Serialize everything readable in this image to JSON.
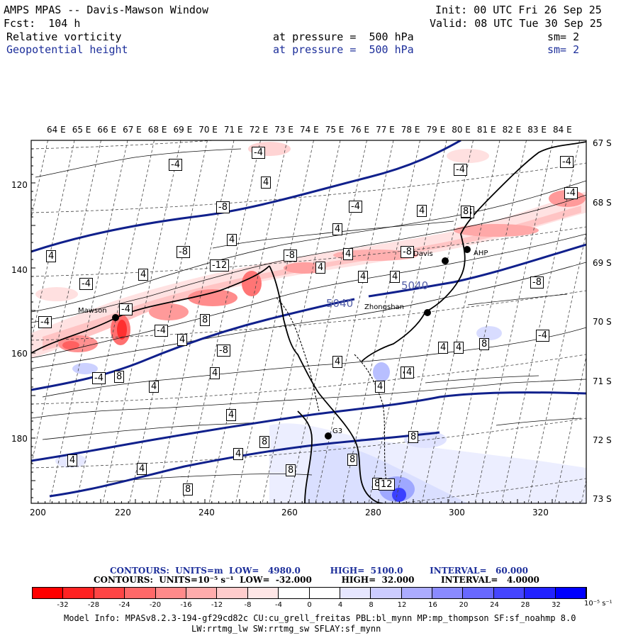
{
  "header": {
    "title": "AMPS MPAS -- Davis-Mawson Window",
    "init": "Init: 00 UTC Fri 26 Sep 25",
    "fcst": "Fcst:  104 h",
    "valid": "Valid: 08 UTC Tue 30 Sep 25",
    "field1_name": "Relative vorticity",
    "field1_level": "at pressure =  500 hPa",
    "field1_sm": "sm= 2",
    "field2_name": "Geopotential height",
    "field2_level": "at pressure =  500 hPa",
    "field2_sm": "sm= 2"
  },
  "map": {
    "top_lon_labels": [
      "64 E",
      "65 E",
      "66 E",
      "67 E",
      "68 E",
      "69 E",
      "70 E",
      "71 E",
      "72 E",
      "73 E",
      "74 E",
      "75 E",
      "76 E",
      "77 E",
      "78 E",
      "79 E",
      "80 E",
      "81 E",
      "82 E",
      "83 E",
      "84 E"
    ],
    "right_lat_labels": [
      "67 S",
      "68 S",
      "69 S",
      "70 S",
      "71 S",
      "72 S",
      "73 S"
    ],
    "left_axis_labels": [
      "120",
      "140",
      "160",
      "180"
    ],
    "bottom_axis_labels": [
      "200",
      "220",
      "240",
      "260",
      "280",
      "300",
      "320"
    ],
    "stations": [
      {
        "name": "Mawson"
      },
      {
        "name": "Davis"
      },
      {
        "name": "AHP"
      },
      {
        "name": "Zhongshan"
      },
      {
        "name": "G3"
      }
    ],
    "height_labels": [
      "5040",
      "5040"
    ],
    "contour_labels": [
      "-4",
      "-4",
      "4",
      "-4",
      "4",
      "-8",
      "-4",
      "4",
      "-4",
      "4",
      "4",
      "-4",
      "4",
      "-12",
      "-8",
      "-8",
      "4",
      "4",
      "-8",
      "4",
      "4",
      "-4",
      "-4",
      "-8",
      "-4",
      "8",
      "-4",
      "4",
      "-8",
      "-4",
      "4",
      "8",
      "4",
      "4",
      "4",
      "8",
      "4",
      "4",
      "-4",
      "4",
      "4",
      "4",
      "4",
      "8",
      "8",
      "8",
      "8",
      "8",
      "8",
      "12",
      "4",
      "4",
      "-4",
      "-8",
      "8"
    ],
    "colors": {
      "height_contour": "#10208c",
      "coast": "#000000",
      "grid": "#555555"
    }
  },
  "legend": {
    "line1": "CONTOURS:  UNITS=m  LOW=   4980.0          HIGH=  5100.0         INTERVAL=   60.000",
    "line2": "CONTOURS:  UNITS=10⁻⁵ s⁻¹  LOW=  -32.000          HIGH=  32.000         INTERVAL=   4.0000",
    "colorbar_labels": [
      "-32",
      "-28",
      "-24",
      "-20",
      "-16",
      "-12",
      "-8",
      "-4",
      "0",
      "4",
      "8",
      "12",
      "16",
      "20",
      "24",
      "28",
      "32"
    ],
    "colorbar_units": "10⁻⁵ s⁻¹",
    "colorbar_colors": [
      "#ff0000",
      "#ff2222",
      "#ff4545",
      "#ff6868",
      "#ff8a8a",
      "#ffacac",
      "#ffcccc",
      "#ffe6e6",
      "#ffffff",
      "#ffffff",
      "#e6e6ff",
      "#ccccff",
      "#acacff",
      "#8a8aff",
      "#6868ff",
      "#4545ff",
      "#2222ff",
      "#0000ff"
    ]
  },
  "footer": {
    "line1": "Model Info: MPASv8.2.3-194-gf29cd82c CU:cu_grell_freitas PBL:bl_mynn MP:mp_thompson SF:sf_noahmp 8.0",
    "line2": "LW:rrtmg_lw SW:rrtmg_sw SFLAY:sf_mynn"
  }
}
